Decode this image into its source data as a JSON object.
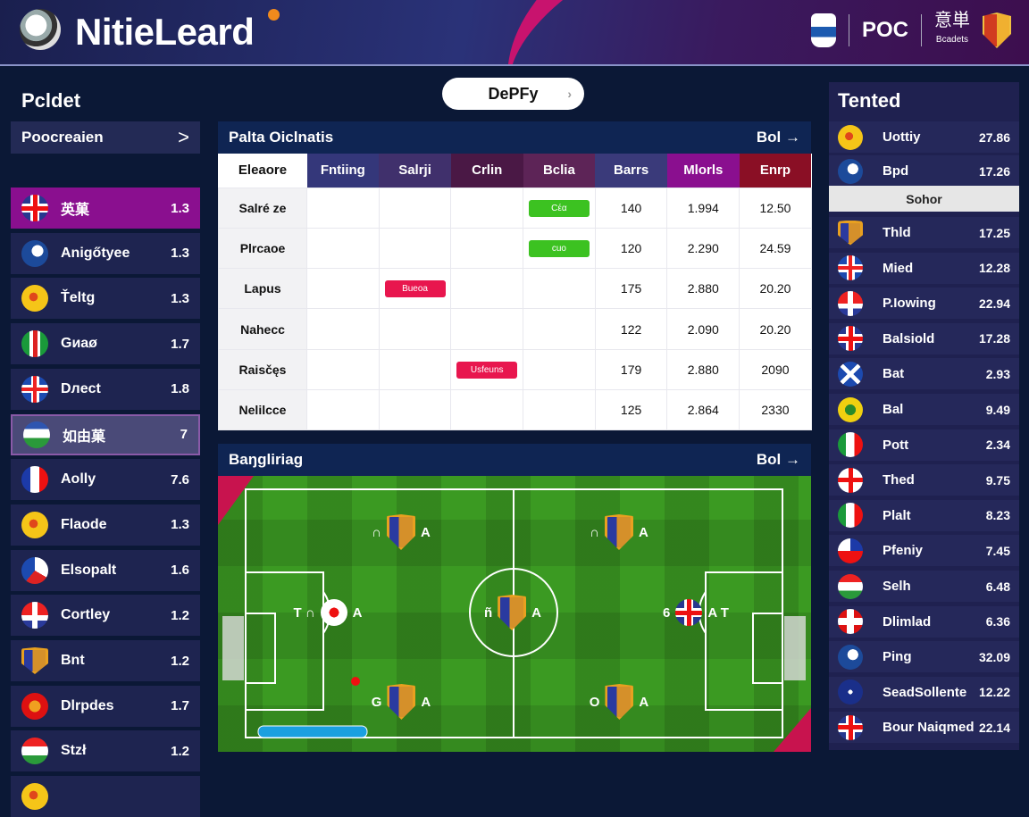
{
  "header": {
    "title": "NitieLeard",
    "poc_label": "POC",
    "cn_label": "意単",
    "cn_sub": "Bcadets"
  },
  "left_section_title": "Pcldet",
  "center_pill": {
    "label": "DePFy"
  },
  "right_section_title": "Tented",
  "left_list": {
    "header": "Poocreaien",
    "header_icon": "chevron-right-icon",
    "items": [
      {
        "label": "英菓",
        "value": "1.3",
        "flag": "f-uk",
        "state": "selected"
      },
      {
        "label": "Anigőtyee",
        "value": "1.3",
        "flag": "f-blue"
      },
      {
        "label": "Ťeltg",
        "value": "1.3",
        "flag": "f-yellow"
      },
      {
        "label": "Gиaø",
        "value": "1.7",
        "flag": "f-cross-g"
      },
      {
        "label": "Dлect",
        "value": "1.8",
        "flag": "f-cross-b"
      },
      {
        "label": "如由菓",
        "value": "7",
        "flag": "f-wg",
        "state": "highlighted"
      },
      {
        "label": "Aolly",
        "value": "7.6",
        "flag": "f-fr"
      },
      {
        "label": "Flaode",
        "value": "1.3",
        "flag": "f-yellow"
      },
      {
        "label": "Elsopalt",
        "value": "1.6",
        "flag": "f-brw"
      },
      {
        "label": "Cortley",
        "value": "1.2",
        "flag": "f-rw"
      },
      {
        "label": "Bnt",
        "value": "1.2",
        "flag": "f-crest"
      },
      {
        "label": "Dlrpdes",
        "value": "1.7",
        "flag": "f-red"
      },
      {
        "label": "Stzł",
        "value": "1.2",
        "flag": "f-hu"
      },
      {
        "label": "",
        "value": "",
        "flag": "f-yellow"
      }
    ]
  },
  "standings": {
    "title": "Palta Oiclnatis",
    "link": "Bol →",
    "columns": [
      {
        "label": "Eleaore",
        "color": "#ffffff"
      },
      {
        "label": "Fntiing",
        "color": "#34377a"
      },
      {
        "label": "Salrji",
        "color": "#40306c"
      },
      {
        "label": "Crlin",
        "color": "#4a1845"
      },
      {
        "label": "Bclia",
        "color": "#5d2457"
      },
      {
        "label": "Barrs",
        "color": "#3a3a7a"
      },
      {
        "label": "Mlorls",
        "color": "#8a0f8f"
      },
      {
        "label": "Enrp",
        "color": "#8a0f25"
      }
    ],
    "rows": [
      {
        "name": "Salré ze",
        "cells": [
          "",
          "",
          "",
          {
            "badge": "Cέα",
            "tone": "green"
          },
          "140",
          "1.994",
          "12.50"
        ]
      },
      {
        "name": "Plrcaoe",
        "cells": [
          "",
          "",
          "",
          {
            "badge": "cuo",
            "tone": "green"
          },
          "120",
          "2.290",
          "24.59"
        ]
      },
      {
        "name": "Lapus",
        "cells": [
          "",
          {
            "badge": "Bueoa",
            "tone": "red"
          },
          "",
          "",
          "175",
          "2.880",
          "20.20"
        ]
      },
      {
        "name": "Nahecc",
        "cells": [
          "",
          "",
          "",
          "",
          "122",
          "2.090",
          "20.20"
        ]
      },
      {
        "name": "Raisčęs",
        "cells": [
          "",
          "",
          {
            "badge": "Usfeuns",
            "tone": "red"
          },
          "",
          "179",
          "2.880",
          "2090"
        ]
      },
      {
        "name": "Nelilcce",
        "cells": [
          "",
          "",
          "",
          "",
          "125",
          "2.864",
          "2330"
        ]
      }
    ]
  },
  "lineup": {
    "title": "Baŋgliriag",
    "link": "Bol →",
    "players": [
      {
        "pre": "∩",
        "post": "A",
        "icon": "crest"
      },
      {
        "pre": "∩",
        "post": "A",
        "icon": "crest"
      },
      {
        "pre": "T ∩",
        "post": "A",
        "icon": "canada-flag"
      },
      {
        "pre": "ñ",
        "post": "A",
        "icon": "crest"
      },
      {
        "pre": "6",
        "post": "A T",
        "icon": "uk-flag"
      },
      {
        "pre": "G",
        "post": "A",
        "icon": "crest"
      },
      {
        "pre": "O",
        "post": "A",
        "icon": "crest"
      }
    ]
  },
  "right_list": {
    "items": [
      {
        "label": "Uottiy",
        "value": "27.86",
        "flag": "f-yellow"
      },
      {
        "label": "Bpd",
        "value": "17.26",
        "flag": "f-blue"
      },
      {
        "label": "Thld",
        "value": "17.25",
        "flag": "f-crest"
      },
      {
        "label": "Mied",
        "value": "12.28",
        "flag": "f-cross-b"
      },
      {
        "label": "P.Iowing",
        "value": "22.94",
        "flag": "f-rw"
      },
      {
        "label": "Balsiold",
        "value": "17.28",
        "flag": "f-uk"
      },
      {
        "label": "Bat",
        "value": "2.93",
        "flag": "f-sc"
      },
      {
        "label": "Bal",
        "value": "9.49",
        "flag": "f-yg"
      },
      {
        "label": "Pott",
        "value": "2.34",
        "flag": "f-it"
      },
      {
        "label": "Thed",
        "value": "9.75",
        "flag": "f-en"
      },
      {
        "label": "Plalt",
        "value": "8.23",
        "flag": "f-it"
      },
      {
        "label": "Pfeniy",
        "value": "7.45",
        "flag": "f-wbr"
      },
      {
        "label": "Selh",
        "value": "6.48",
        "flag": "f-hu"
      },
      {
        "label": "Dlimlad",
        "value": "6.36",
        "flag": "f-wcr"
      },
      {
        "label": "Ping",
        "value": "32.09",
        "flag": "f-blue"
      },
      {
        "label": "SeadSollente",
        "value": "12.22",
        "flag": "f-navy"
      },
      {
        "label": "Bour Naiqmed",
        "value": "22.14",
        "flag": "f-uk"
      }
    ],
    "divider_label": "Sohor"
  }
}
